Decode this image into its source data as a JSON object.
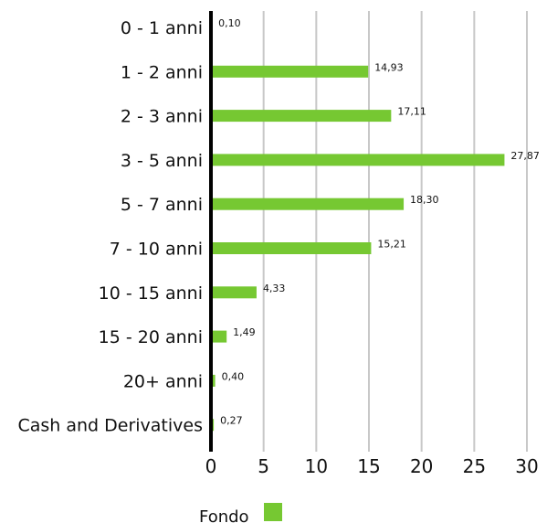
{
  "chart_data": {
    "type": "bar",
    "orientation": "horizontal",
    "categories": [
      "0 - 1 anni",
      "1 - 2 anni",
      "2 - 3 anni",
      "3 - 5 anni",
      "5 - 7 anni",
      "7 - 10 anni",
      "10 - 15 anni",
      "15 - 20 anni",
      "20+ anni",
      "Cash and Derivatives"
    ],
    "series": [
      {
        "name": "Fondo",
        "color": "#76c832",
        "values": [
          0.1,
          14.93,
          17.11,
          27.87,
          18.3,
          15.21,
          4.33,
          1.49,
          0.4,
          0.27
        ],
        "value_labels": [
          "0,10",
          "14,93",
          "17,11",
          "27,87",
          "18,30",
          "15,21",
          "4,33",
          "1,49",
          "0,40",
          "0,27"
        ]
      }
    ],
    "xlim": [
      0,
      30
    ],
    "xticks": [
      0,
      5,
      10,
      15,
      20,
      25,
      30
    ],
    "xtick_labels": [
      "0",
      "5",
      "10",
      "15",
      "20",
      "25",
      "30"
    ],
    "grid": "vertical",
    "legend": {
      "position": "bottom-left",
      "label": "Fondo"
    },
    "colors": {
      "bar": "#76c832",
      "grid": "#c8c8c8",
      "axis": "#000000"
    }
  }
}
